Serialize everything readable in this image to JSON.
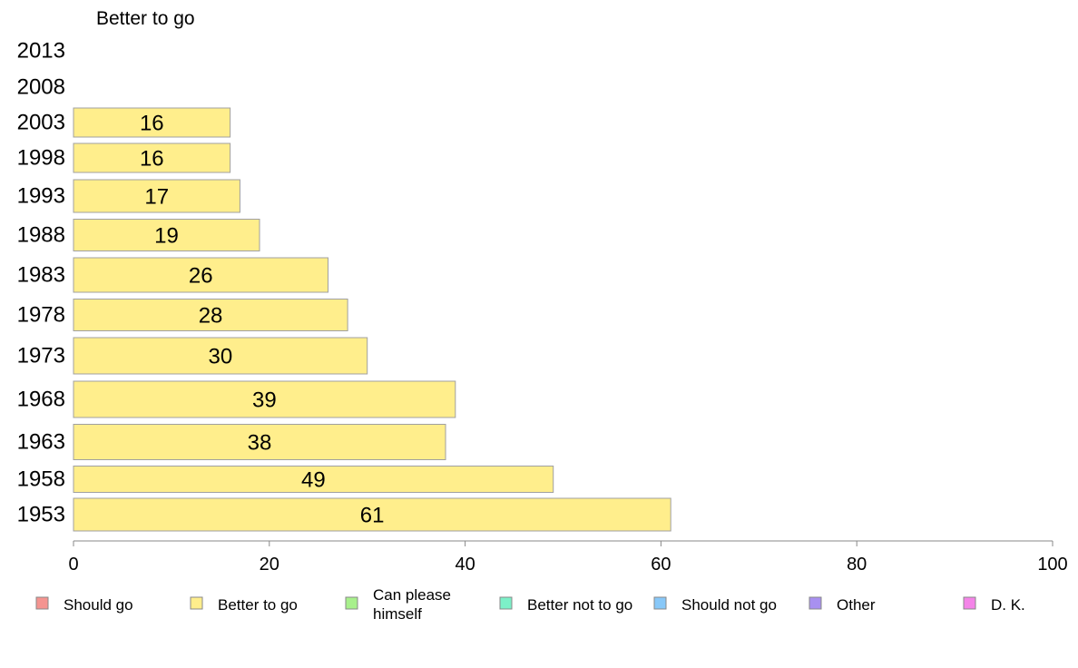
{
  "chart_data": {
    "type": "bar",
    "orientation": "horizontal",
    "title": "Better to go",
    "categories": [
      "2013",
      "2008",
      "2003",
      "1998",
      "1993",
      "1988",
      "1983",
      "1978",
      "1973",
      "1968",
      "1963",
      "1958",
      "1953"
    ],
    "values": [
      null,
      null,
      16,
      16,
      17,
      19,
      26,
      28,
      30,
      39,
      38,
      49,
      61
    ],
    "value_labels": [
      "",
      "",
      "16",
      "16",
      "17",
      "19",
      "26",
      "28",
      "30",
      "39",
      "38",
      "49",
      "61"
    ],
    "bar_color": "#ffee8c",
    "bar_edge_color": "#a0a0a0",
    "xlim": [
      0,
      100
    ],
    "xticks": [
      0,
      20,
      40,
      60,
      80,
      100
    ],
    "grid": false,
    "legend_position": "bottom",
    "legend": [
      {
        "label": "Should go",
        "color": "#f49490"
      },
      {
        "label": "Better to go",
        "color": "#ffee8c"
      },
      {
        "label": "Can please himself",
        "color": "#a8f08c"
      },
      {
        "label": "Better not to go",
        "color": "#7cf0c8"
      },
      {
        "label": "Should not go",
        "color": "#88c8f8"
      },
      {
        "label": "Other",
        "color": "#a890f0"
      },
      {
        "label": "D. K.",
        "color": "#f484e8"
      }
    ]
  }
}
